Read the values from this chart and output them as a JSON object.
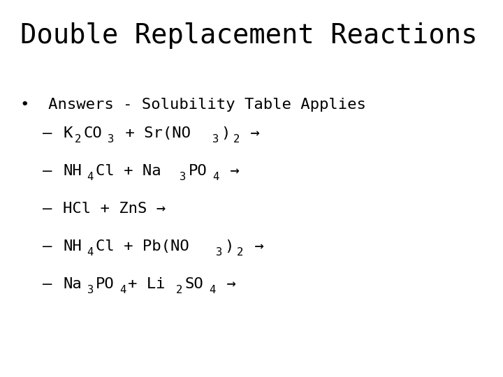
{
  "title": "Double Replacement Reactions",
  "background_color": "#ffffff",
  "text_color": "#000000",
  "title_fontsize": 28,
  "body_fontsize": 16,
  "sub_scale": 0.7,
  "bullet": "•",
  "bullet_text": "Answers - Solubility Table Applies",
  "lines": [
    [
      {
        "text": "K",
        "sub": false
      },
      {
        "text": "2",
        "sub": true
      },
      {
        "text": "CO",
        "sub": false
      },
      {
        "text": "3",
        "sub": true
      },
      {
        "text": " + Sr(NO",
        "sub": false
      },
      {
        "text": "3",
        "sub": true
      },
      {
        "text": ")",
        "sub": false
      },
      {
        "text": "2",
        "sub": true
      },
      {
        "text": " →",
        "sub": false
      }
    ],
    [
      {
        "text": "NH",
        "sub": false
      },
      {
        "text": "4",
        "sub": true
      },
      {
        "text": "Cl + Na",
        "sub": false
      },
      {
        "text": "3",
        "sub": true
      },
      {
        "text": "PO",
        "sub": false
      },
      {
        "text": "4",
        "sub": true
      },
      {
        "text": " →",
        "sub": false
      }
    ],
    [
      {
        "text": "HCl + ZnS →",
        "sub": false
      }
    ],
    [
      {
        "text": "NH",
        "sub": false
      },
      {
        "text": "4",
        "sub": true
      },
      {
        "text": "Cl + Pb(NO",
        "sub": false
      },
      {
        "text": "3",
        "sub": true
      },
      {
        "text": ")",
        "sub": false
      },
      {
        "text": "2",
        "sub": true
      },
      {
        "text": " →",
        "sub": false
      }
    ],
    [
      {
        "text": "Na",
        "sub": false
      },
      {
        "text": "3",
        "sub": true
      },
      {
        "text": "PO",
        "sub": false
      },
      {
        "text": "4",
        "sub": true
      },
      {
        "text": "+ Li",
        "sub": false
      },
      {
        "text": "2",
        "sub": true
      },
      {
        "text": "SO",
        "sub": false
      },
      {
        "text": "4",
        "sub": true
      },
      {
        "text": " →",
        "sub": false
      }
    ]
  ]
}
